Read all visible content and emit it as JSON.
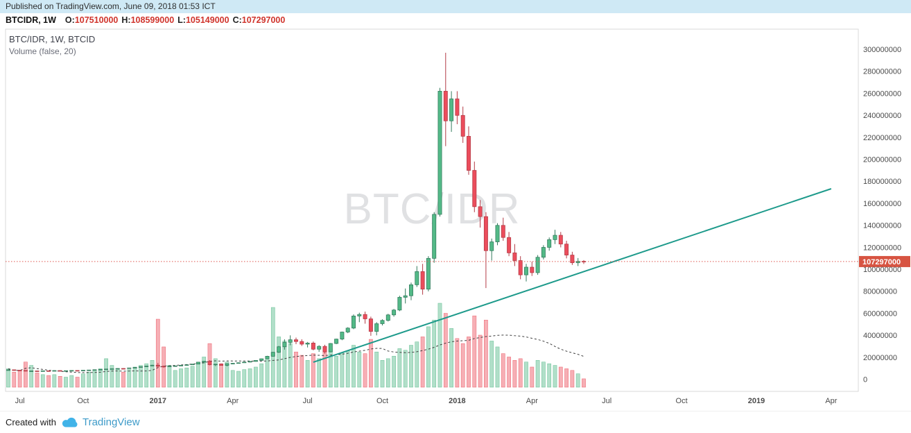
{
  "header": {
    "published": "Published on TradingView.com, June 09, 2018 01:53 ICT",
    "symbol": "BTCIDR, 1W",
    "ohlc": {
      "o_label": "O:",
      "o_value": "107510000",
      "h_label": "H:",
      "h_value": "108599000",
      "l_label": "L:",
      "l_value": "105149000",
      "c_label": "C:",
      "c_value": "107297000"
    }
  },
  "legend": {
    "line1": "BTC/IDR, 1W, BTCID",
    "line2": "Volume (false, 20)"
  },
  "watermark": "BTC/IDR",
  "footer": {
    "created_with": "Created with",
    "brand": "TradingView"
  },
  "colors": {
    "up": "#53b987",
    "up_border": "#327a5c",
    "down": "#eb4d5c",
    "down_border": "#b23a45",
    "vol_up": "#53b987",
    "vol_down": "#eb4d5c",
    "vol_ma": "#3d3d3d",
    "trend": "#1d9a8b",
    "price_line": "#e0574f",
    "price_label_bg": "#d75442",
    "axis_text": "#4a4a4a",
    "border": "#d9d9d9",
    "published_bg": "#cfe9f5"
  },
  "chart_data": {
    "type": "candlestick+volume",
    "symbol": "BTC/IDR",
    "exchange": "BTCID",
    "interval": "1W",
    "title": "BTC/IDR, 1W, BTCID",
    "indicator": "Volume (false, 20)",
    "price_unit": "IDR",
    "price_multiplier": 1000000,
    "current_price": 107297000,
    "current_price_label": "107297000",
    "y_axis": {
      "min": 0,
      "max": 300000000,
      "step": 20000000,
      "labels": [
        "300000000",
        "280000000",
        "260000000",
        "240000000",
        "220000000",
        "200000000",
        "180000000",
        "160000000",
        "140000000",
        "120000000",
        "100000000",
        "80000000",
        "60000000",
        "40000000",
        "20000000",
        "0"
      ]
    },
    "x_axis": {
      "total_slots": 146,
      "start": "Jul 2016",
      "ticks": [
        {
          "label": "Jul",
          "slot": 2
        },
        {
          "label": "Oct",
          "slot": 13
        },
        {
          "label": "2017",
          "slot": 26,
          "major": true
        },
        {
          "label": "Apr",
          "slot": 39
        },
        {
          "label": "Jul",
          "slot": 52
        },
        {
          "label": "Oct",
          "slot": 65
        },
        {
          "label": "2018",
          "slot": 78,
          "major": true
        },
        {
          "label": "Apr",
          "slot": 91
        },
        {
          "label": "Jul",
          "slot": 104
        },
        {
          "label": "Oct",
          "slot": 117
        },
        {
          "label": "2019",
          "slot": 130,
          "major": true
        },
        {
          "label": "Apr",
          "slot": 143
        }
      ]
    },
    "trendline": {
      "from_slot": 53,
      "from_price_m": 15.8,
      "to_slot": 143,
      "to_price_m": 173.5
    },
    "volume_ma_period": 20,
    "columns": [
      "open_m",
      "high_m",
      "low_m",
      "close_m",
      "volume_rel"
    ],
    "candles": [
      [
        8.6,
        9.2,
        8.3,
        8.9,
        22
      ],
      [
        8.9,
        9.1,
        8.4,
        8.6,
        18
      ],
      [
        8.6,
        8.8,
        8.1,
        8.3,
        20
      ],
      [
        8.3,
        8.5,
        7.4,
        7.7,
        30
      ],
      [
        7.7,
        8.1,
        7.3,
        7.9,
        26
      ],
      [
        7.9,
        8.0,
        7.5,
        7.7,
        17
      ],
      [
        7.7,
        8.1,
        7.6,
        8.0,
        15
      ],
      [
        8.0,
        8.2,
        7.7,
        7.9,
        14
      ],
      [
        7.9,
        8.3,
        7.8,
        8.2,
        15
      ],
      [
        8.2,
        8.4,
        7.9,
        8.0,
        13
      ],
      [
        8.0,
        8.2,
        7.8,
        8.1,
        12
      ],
      [
        8.1,
        8.4,
        8.0,
        8.3,
        14
      ],
      [
        8.3,
        8.5,
        8.1,
        8.2,
        12
      ],
      [
        8.2,
        8.6,
        8.1,
        8.5,
        16
      ],
      [
        8.5,
        8.8,
        8.3,
        8.7,
        18
      ],
      [
        8.7,
        9.1,
        8.6,
        9.0,
        20
      ],
      [
        9.0,
        9.4,
        8.8,
        9.3,
        22
      ],
      [
        9.3,
        9.8,
        9.1,
        9.6,
        34
      ],
      [
        9.6,
        10.1,
        9.4,
        9.9,
        26
      ],
      [
        9.9,
        10.3,
        9.7,
        10.1,
        22
      ],
      [
        10.1,
        10.4,
        9.8,
        10.0,
        18
      ],
      [
        10.0,
        10.7,
        9.9,
        10.6,
        21
      ],
      [
        10.6,
        11.3,
        10.5,
        11.1,
        24
      ],
      [
        11.1,
        11.9,
        11.0,
        11.7,
        26
      ],
      [
        11.7,
        12.6,
        11.5,
        12.4,
        28
      ],
      [
        12.4,
        13.4,
        12.2,
        13.1,
        32
      ],
      [
        13.1,
        15.2,
        10.5,
        12.1,
        81
      ],
      [
        12.1,
        12.7,
        10.9,
        12.0,
        48
      ],
      [
        12.0,
        12.5,
        11.6,
        12.3,
        26
      ],
      [
        12.3,
        12.6,
        11.9,
        12.5,
        20
      ],
      [
        12.5,
        13.2,
        12.3,
        13.0,
        22
      ],
      [
        13.0,
        13.6,
        12.8,
        13.5,
        23
      ],
      [
        13.5,
        14.2,
        13.3,
        14.1,
        25
      ],
      [
        14.1,
        16.0,
        13.9,
        15.8,
        30
      ],
      [
        15.8,
        17.0,
        14.6,
        16.6,
        36
      ],
      [
        16.6,
        17.6,
        12.9,
        13.5,
        52
      ],
      [
        13.5,
        14.3,
        12.3,
        14.0,
        34
      ],
      [
        14.0,
        14.6,
        12.6,
        12.9,
        28
      ],
      [
        12.9,
        14.7,
        12.0,
        14.5,
        30
      ],
      [
        14.5,
        15.1,
        14.1,
        14.8,
        20
      ],
      [
        14.8,
        15.5,
        14.5,
        15.3,
        19
      ],
      [
        15.3,
        16.1,
        15.1,
        15.9,
        21
      ],
      [
        15.9,
        16.7,
        15.7,
        16.5,
        22
      ],
      [
        16.5,
        17.6,
        16.3,
        17.4,
        24
      ],
      [
        17.4,
        19.1,
        17.2,
        18.9,
        28
      ],
      [
        18.9,
        21.6,
        18.7,
        21.2,
        35
      ],
      [
        21.2,
        25.2,
        20.8,
        24.8,
        95
      ],
      [
        24.8,
        30.6,
        24.2,
        29.8,
        60
      ],
      [
        29.8,
        36.6,
        27.2,
        33.8,
        55
      ],
      [
        33.8,
        40.2,
        31.2,
        36.2,
        52
      ],
      [
        36.2,
        38.2,
        32.2,
        34.6,
        42
      ],
      [
        34.6,
        36.6,
        30.6,
        32.2,
        38
      ],
      [
        32.2,
        34.2,
        29.2,
        33.2,
        32
      ],
      [
        33.2,
        34.6,
        26.6,
        27.6,
        40
      ],
      [
        27.6,
        31.2,
        25.2,
        30.2,
        34
      ],
      [
        30.2,
        31.6,
        23.6,
        25.2,
        44
      ],
      [
        25.2,
        33.2,
        24.8,
        32.8,
        46
      ],
      [
        32.8,
        37.2,
        32.2,
        36.8,
        37
      ],
      [
        36.8,
        43.6,
        35.8,
        43.2,
        41
      ],
      [
        43.2,
        47.6,
        42.2,
        46.8,
        43
      ],
      [
        46.8,
        59.2,
        45.8,
        57.8,
        50
      ],
      [
        57.8,
        60.8,
        52.2,
        59.2,
        42
      ],
      [
        59.2,
        61.8,
        50.8,
        55.2,
        40
      ],
      [
        55.2,
        57.2,
        39.8,
        43.8,
        57
      ],
      [
        43.8,
        52.2,
        40.2,
        50.8,
        42
      ],
      [
        50.8,
        54.8,
        49.2,
        53.8,
        32
      ],
      [
        53.8,
        59.8,
        52.8,
        58.8,
        34
      ],
      [
        58.8,
        64.2,
        57.2,
        63.2,
        37
      ],
      [
        63.2,
        76.2,
        62.2,
        74.8,
        46
      ],
      [
        74.8,
        82.8,
        69.2,
        76.2,
        44
      ],
      [
        76.2,
        88.2,
        72.2,
        86.2,
        50
      ],
      [
        86.2,
        103.2,
        84.2,
        98.2,
        54
      ],
      [
        98.2,
        105.2,
        77.2,
        82.2,
        60
      ],
      [
        82.2,
        112.2,
        80.2,
        110.2,
        72
      ],
      [
        110.2,
        152.2,
        106.2,
        150.2,
        80
      ],
      [
        150.2,
        265.2,
        148.2,
        262.2,
        100
      ],
      [
        262.2,
        297.2,
        212.2,
        235.2,
        88
      ],
      [
        235.2,
        262.2,
        225.2,
        255.2,
        70
      ],
      [
        255.2,
        262.2,
        232.2,
        240.2,
        58
      ],
      [
        240.2,
        248.2,
        215.2,
        221.2,
        52
      ],
      [
        221.2,
        230.2,
        186.2,
        190.2,
        60
      ],
      [
        190.2,
        198.2,
        152.2,
        157.2,
        85
      ],
      [
        157.2,
        163.2,
        138.2,
        148.2,
        62
      ],
      [
        148.2,
        152.2,
        83.2,
        117.2,
        80
      ],
      [
        117.2,
        128.2,
        108.2,
        125.2,
        55
      ],
      [
        125.2,
        142.2,
        122.2,
        140.2,
        48
      ],
      [
        140.2,
        147.2,
        126.2,
        129.2,
        40
      ],
      [
        129.2,
        134.2,
        112.2,
        115.2,
        36
      ],
      [
        115.2,
        123.2,
        103.2,
        108.2,
        32
      ],
      [
        108.2,
        112.2,
        91.2,
        95.2,
        34
      ],
      [
        95.2,
        105.2,
        89.2,
        102.2,
        30
      ],
      [
        102.2,
        107.2,
        94.2,
        97.2,
        24
      ],
      [
        97.2,
        113.2,
        95.2,
        111.2,
        32
      ],
      [
        111.2,
        122.2,
        109.2,
        120.2,
        30
      ],
      [
        120.2,
        129.2,
        117.2,
        127.2,
        28
      ],
      [
        127.2,
        136.2,
        123.2,
        131.2,
        26
      ],
      [
        131.2,
        134.2,
        120.2,
        123.2,
        24
      ],
      [
        123.2,
        126.2,
        110.2,
        113.2,
        22
      ],
      [
        113.2,
        116.2,
        104.2,
        106.2,
        20
      ],
      [
        106.2,
        110.5,
        103.2,
        107.51,
        16
      ],
      [
        107.51,
        108.599,
        105.149,
        107.297,
        10
      ]
    ]
  }
}
